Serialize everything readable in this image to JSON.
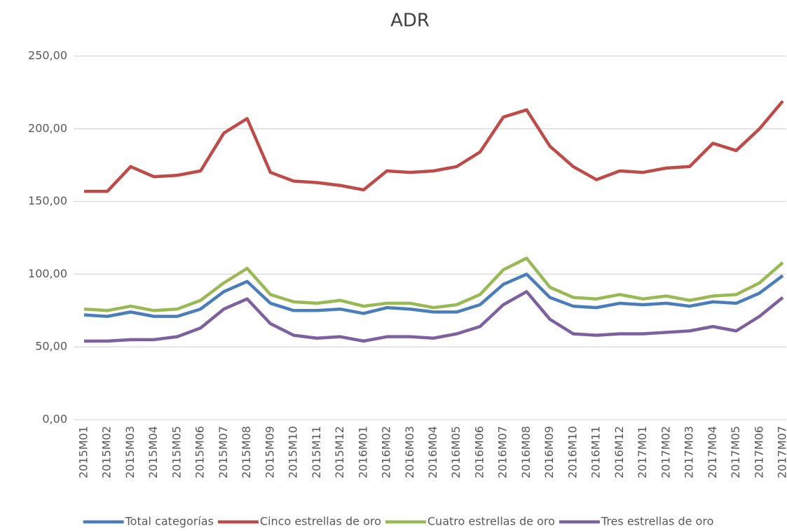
{
  "chart_data": {
    "type": "line",
    "title": "ADR",
    "categories": [
      "2015M01",
      "2015M02",
      "2015M03",
      "2015M04",
      "2015M05",
      "2015M06",
      "2015M07",
      "2015M08",
      "2015M09",
      "2015M10",
      "2015M11",
      "2015M12",
      "2016M01",
      "2016M02",
      "2016M03",
      "2016M04",
      "2016M05",
      "2016M06",
      "2016M07",
      "2016M08",
      "2016M09",
      "2016M10",
      "2016M11",
      "2016M12",
      "2017M01",
      "2017M02",
      "2017M03",
      "2017M04",
      "2017M05",
      "2017M06",
      "2017M07"
    ],
    "series": [
      {
        "name": "Total categorías",
        "color": "#4a7ebb",
        "values": [
          72,
          71,
          74,
          71,
          71,
          76,
          88,
          95,
          80,
          75,
          75,
          76,
          73,
          77,
          76,
          74,
          74,
          79,
          93,
          100,
          84,
          78,
          77,
          80,
          79,
          80,
          78,
          81,
          80,
          87,
          99
        ]
      },
      {
        "name": "Cinco estrellas de oro",
        "color": "#be4b48",
        "values": [
          157,
          157,
          174,
          167,
          168,
          171,
          197,
          207,
          170,
          164,
          163,
          161,
          158,
          171,
          170,
          171,
          174,
          184,
          208,
          213,
          188,
          174,
          165,
          171,
          170,
          173,
          174,
          190,
          185,
          200,
          219
        ]
      },
      {
        "name": "Cuatro estrellas de oro",
        "color": "#98b954",
        "values": [
          76,
          75,
          78,
          75,
          76,
          82,
          94,
          104,
          86,
          81,
          80,
          82,
          78,
          80,
          80,
          77,
          79,
          86,
          103,
          111,
          91,
          84,
          83,
          86,
          83,
          85,
          82,
          85,
          86,
          94,
          108
        ]
      },
      {
        "name": "Tres estrellas de oro",
        "color": "#7d60a0",
        "values": [
          54,
          54,
          55,
          55,
          57,
          63,
          76,
          83,
          66,
          58,
          56,
          57,
          54,
          57,
          57,
          56,
          59,
          64,
          79,
          88,
          69,
          59,
          58,
          59,
          59,
          60,
          61,
          64,
          61,
          71,
          84
        ]
      }
    ],
    "ylim": [
      0,
      250
    ],
    "yticks": [
      {
        "value": 0,
        "label": "0,00"
      },
      {
        "value": 50,
        "label": "50,00"
      },
      {
        "value": 100,
        "label": "100,00"
      },
      {
        "value": 150,
        "label": "150,00"
      },
      {
        "value": 200,
        "label": "200,00"
      },
      {
        "value": 250,
        "label": "250,00"
      }
    ],
    "grid": true,
    "legend": "bottom"
  }
}
